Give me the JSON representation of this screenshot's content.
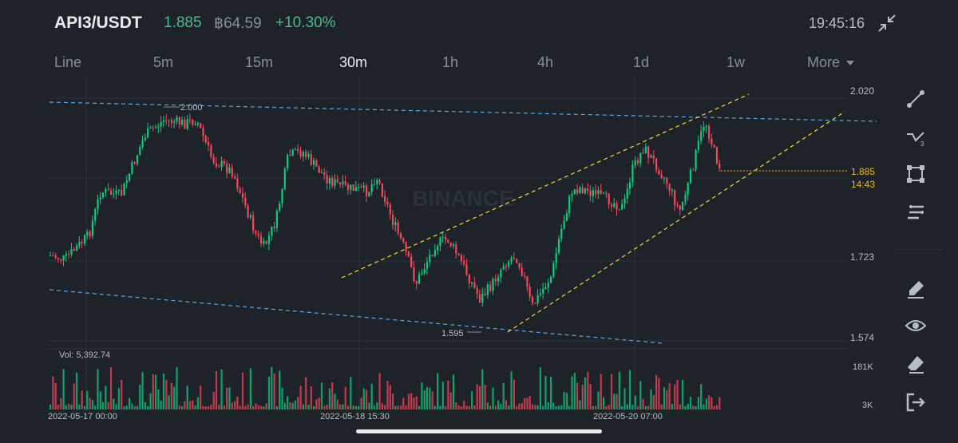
{
  "header": {
    "pair": "API3/USDT",
    "last_price": "1.885",
    "btc_price": "฿64.59",
    "change": "+10.30%",
    "clock": "19:45:16"
  },
  "intervals": [
    "Line",
    "5m",
    "15m",
    "30m",
    "1h",
    "4h",
    "1d",
    "1w"
  ],
  "active_interval": "30m",
  "more_label": "More",
  "chart": {
    "watermark": "BINANCE",
    "price_axis": [
      "2.020",
      "1.723",
      "1.574"
    ],
    "current_price": "1.885",
    "countdown": "14:43",
    "high_marker": "2.000",
    "low_marker": "1.595",
    "volume_label": "Vol: 5,392.74",
    "volume_axis": [
      "181K",
      "3K"
    ],
    "time_axis": [
      "2022-05-17 00:00",
      "2022-05-18 15:30",
      "2022-05-20 07:00"
    ]
  },
  "toolbar": [
    "trendline-icon",
    "fib-icon",
    "rectangle-icon",
    "indicator-icon",
    "brush-icon",
    "eye-icon",
    "eraser-icon",
    "exit-icon"
  ],
  "colors": {
    "up": "#0ecb81",
    "down": "#f6465d",
    "accent": "#f0b90b",
    "channel": "#fcd535",
    "wedge": "#5ea7e4"
  },
  "chart_data": {
    "type": "candlestick",
    "ylim": [
      1.574,
      2.02
    ],
    "yticks": [
      2.02,
      1.723,
      1.574
    ],
    "xticks": [
      "2022-05-17 00:00",
      "2022-05-18 15:30",
      "2022-05-20 07:00"
    ],
    "last": 1.885,
    "high": 2.0,
    "low": 1.595,
    "volume_total": 5392.74,
    "volume_ticks": [
      "181K",
      "3K"
    ]
  }
}
